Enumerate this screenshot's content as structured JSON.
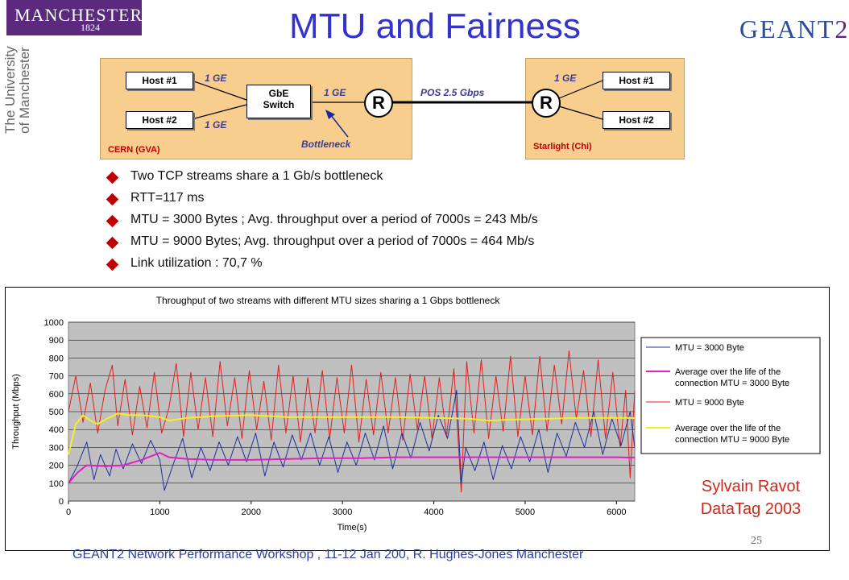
{
  "header": {
    "title": "MTU and Fairness",
    "logo_left": {
      "main": "MANCHESTER",
      "year": "1824",
      "side_line1": "The University",
      "side_line2": "of Manchester"
    },
    "logo_right": {
      "text": "GEANT",
      "suffix": "2"
    }
  },
  "diagram": {
    "site_left": "CERN (GVA)",
    "site_right": "Starlight (Chi)",
    "left_hosts": [
      "Host #1",
      "Host #2"
    ],
    "right_hosts": [
      "Host #1",
      "Host #2"
    ],
    "switch_line1": "GbE",
    "switch_line2": "Switch",
    "router_label": "R",
    "link_ge": "1 GE",
    "link_pos": "POS 2.5 Gbps",
    "bottleneck": "Bottleneck"
  },
  "bullets": [
    "Two TCP streams share a 1 Gb/s bottleneck",
    "RTT=117 ms",
    "MTU = 3000 Bytes ; Avg. throughput over a period of 7000s = 243 Mb/s",
    "MTU = 9000 Bytes; Avg. throughput over a period of 7000s = 464 Mb/s",
    "Link utilization : 70,7 %"
  ],
  "chart_data": {
    "type": "line",
    "title": "Throughput of two streams with different MTU sizes sharing a 1 Gbps bottleneck",
    "xlabel": "Time(s)",
    "ylabel": "Throughput (Mbps)",
    "xlim": [
      0,
      6200
    ],
    "ylim": [
      0,
      1000
    ],
    "xticks": [
      0,
      1000,
      2000,
      3000,
      4000,
      5000,
      6000
    ],
    "yticks": [
      0,
      100,
      200,
      300,
      400,
      500,
      600,
      700,
      800,
      900,
      1000
    ],
    "grid": "horizontal",
    "legend_position": "right",
    "series": [
      {
        "name": "MTU = 3000 Byte",
        "color": "#1f2f9f",
        "style": "sawtooth",
        "x": [
          0,
          100,
          200,
          280,
          350,
          450,
          520,
          600,
          700,
          800,
          900,
          1000,
          1050,
          1150,
          1250,
          1350,
          1450,
          1550,
          1650,
          1750,
          1850,
          1950,
          2050,
          2150,
          2250,
          2350,
          2450,
          2550,
          2650,
          2750,
          2850,
          2950,
          3050,
          3150,
          3250,
          3350,
          3450,
          3550,
          3650,
          3750,
          3850,
          3950,
          4050,
          4150,
          4250,
          4300,
          4350,
          4450,
          4550,
          4650,
          4750,
          4850,
          4950,
          5050,
          5150,
          5250,
          5350,
          5450,
          5550,
          5650,
          5750,
          5850,
          5950,
          6050,
          6150,
          6200
        ],
        "y": [
          100,
          200,
          330,
          120,
          260,
          140,
          290,
          180,
          320,
          210,
          340,
          230,
          60,
          210,
          350,
          130,
          300,
          170,
          330,
          200,
          360,
          220,
          380,
          140,
          330,
          190,
          370,
          230,
          380,
          200,
          360,
          160,
          330,
          200,
          380,
          230,
          420,
          180,
          380,
          240,
          440,
          280,
          480,
          350,
          620,
          100,
          300,
          170,
          330,
          120,
          310,
          180,
          360,
          220,
          400,
          160,
          380,
          250,
          440,
          300,
          500,
          260,
          460,
          310,
          500,
          300
        ]
      },
      {
        "name": "Average over the life of the connection MTU = 3000 Byte",
        "color": "#e020c0",
        "style": "smooth",
        "x": [
          0,
          100,
          200,
          400,
          600,
          800,
          1000,
          1100,
          1300,
          1600,
          2000,
          2400,
          2800,
          3200,
          3600,
          4000,
          4400,
          4800,
          5200,
          5600,
          6000,
          6200
        ],
        "y": [
          100,
          160,
          200,
          195,
          200,
          230,
          270,
          245,
          235,
          230,
          230,
          235,
          240,
          240,
          245,
          245,
          245,
          245,
          245,
          245,
          245,
          243
        ]
      },
      {
        "name": "MTU = 9000 Byte",
        "color": "#e02020",
        "style": "sawtooth",
        "x": [
          0,
          80,
          160,
          240,
          320,
          400,
          480,
          540,
          620,
          700,
          780,
          860,
          940,
          1020,
          1100,
          1180,
          1260,
          1340,
          1420,
          1500,
          1580,
          1660,
          1740,
          1820,
          1900,
          1980,
          2060,
          2140,
          2220,
          2300,
          2380,
          2460,
          2540,
          2620,
          2700,
          2780,
          2860,
          2940,
          3020,
          3100,
          3180,
          3260,
          3340,
          3420,
          3500,
          3580,
          3660,
          3740,
          3820,
          3900,
          3980,
          4060,
          4140,
          4220,
          4300,
          4360,
          4440,
          4520,
          4600,
          4680,
          4760,
          4840,
          4920,
          5000,
          5080,
          5160,
          5240,
          5320,
          5400,
          5480,
          5560,
          5640,
          5720,
          5800,
          5880,
          5960,
          6040,
          6100,
          6150,
          6200
        ],
        "y": [
          500,
          700,
          440,
          660,
          380,
          620,
          760,
          420,
          680,
          370,
          640,
          410,
          720,
          380,
          520,
          770,
          360,
          720,
          400,
          690,
          360,
          780,
          420,
          690,
          350,
          730,
          400,
          670,
          340,
          760,
          380,
          700,
          330,
          690,
          380,
          730,
          350,
          690,
          380,
          760,
          330,
          680,
          370,
          720,
          380,
          690,
          340,
          710,
          400,
          700,
          350,
          690,
          360,
          740,
          50,
          780,
          380,
          790,
          350,
          700,
          390,
          810,
          360,
          700,
          370,
          810,
          390,
          760,
          430,
          840,
          460,
          730,
          360,
          790,
          350,
          720,
          300,
          620,
          130,
          620
        ]
      },
      {
        "name": "Average over the life of the connection MTU = 9000 Byte",
        "color": "#f5ef20",
        "style": "smooth",
        "x": [
          0,
          80,
          160,
          240,
          320,
          420,
          540,
          660,
          800,
          1000,
          1100,
          1300,
          1600,
          2000,
          2400,
          2800,
          3200,
          3600,
          4000,
          4400,
          4600,
          4800,
          5200,
          5600,
          6000,
          6200
        ],
        "y": [
          260,
          430,
          480,
          450,
          430,
          460,
          490,
          480,
          480,
          470,
          450,
          465,
          475,
          480,
          470,
          470,
          470,
          470,
          465,
          460,
          450,
          455,
          460,
          465,
          465,
          464
        ]
      }
    ]
  },
  "attribution": {
    "line1": "Sylvain Ravot",
    "line2": "DataTag 2003"
  },
  "footer": {
    "text": "GEANT2 Network Performance Workshop , 11-12 Jan 200, R. Hughes-Jones Manchester",
    "page": "25"
  }
}
